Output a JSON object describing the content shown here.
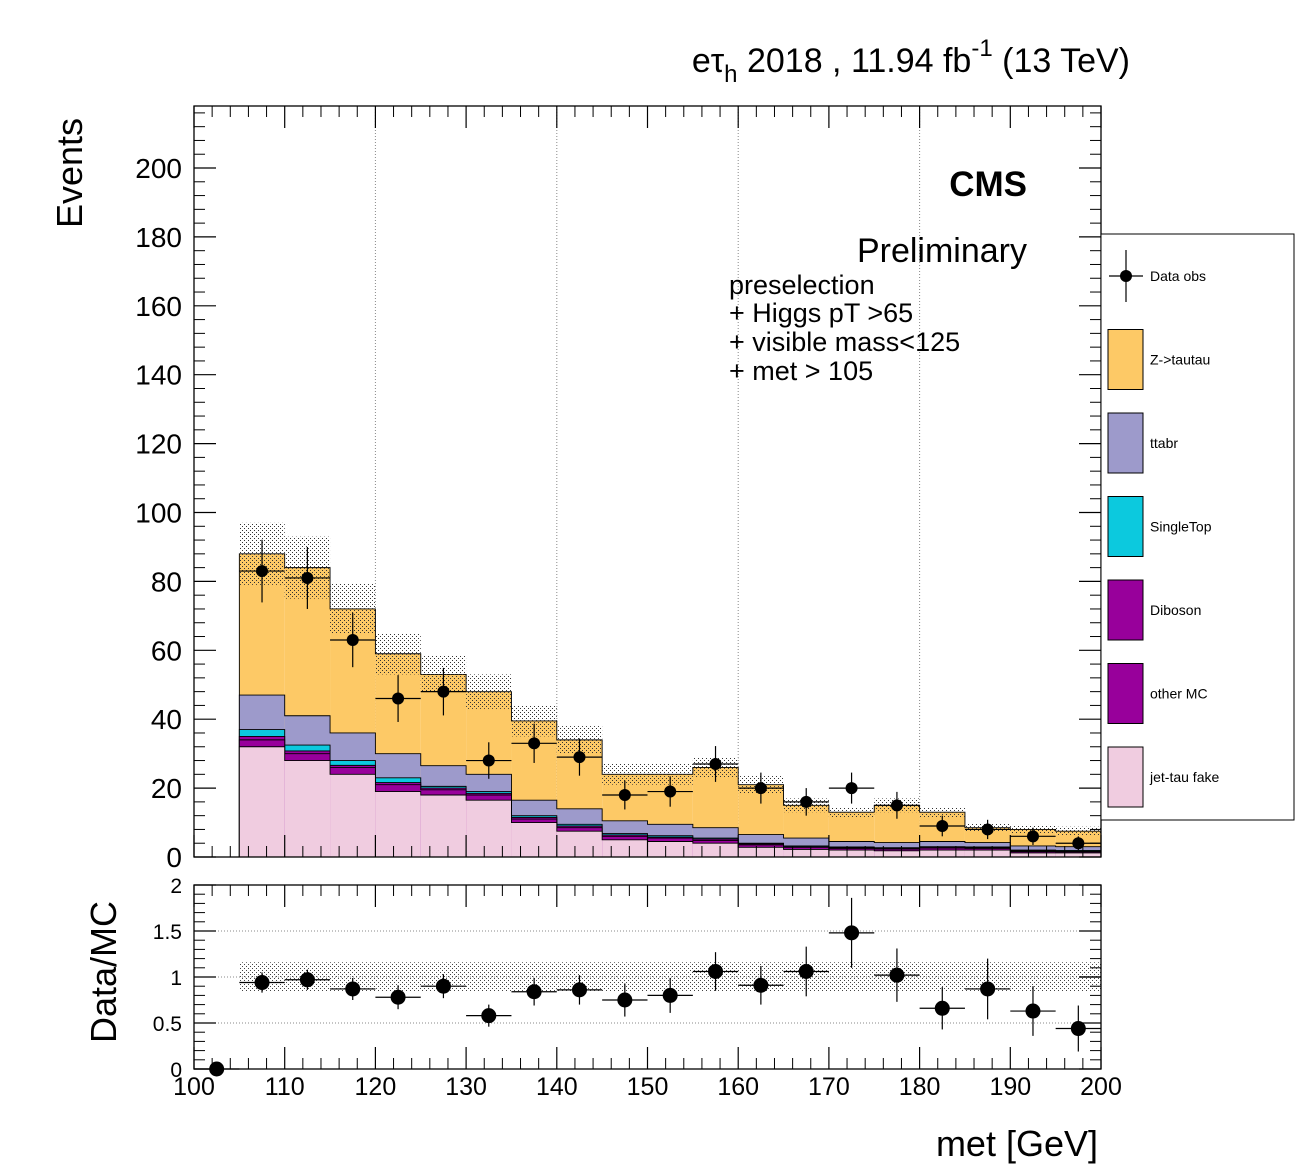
{
  "header": {
    "channel_main": "eτ",
    "channel_sub": "h",
    "lumi_text": " 2018 , 11.94 fb",
    "lumi_exp": "-1",
    "energy": " (13 TeV)"
  },
  "labels": {
    "cms": "CMS",
    "preliminary": "Preliminary",
    "selection": [
      "preselection",
      "+ Higgs pT >65",
      "+ visible mass<125",
      "+ met > 105"
    ]
  },
  "legend": [
    {
      "name": "Data obs",
      "kind": "marker",
      "color": "#000000"
    },
    {
      "name": "Z->tautau",
      "kind": "fill",
      "color": "#FDC966"
    },
    {
      "name": "ttabr",
      "kind": "fill",
      "color": "#9D9ACB"
    },
    {
      "name": "SingleTop",
      "kind": "fill",
      "color": "#0CC9DE"
    },
    {
      "name": "Diboson",
      "kind": "fill",
      "color": "#98009B"
    },
    {
      "name": "other MC",
      "kind": "fill",
      "color": "#98009B"
    },
    {
      "name": "jet-tau fake",
      "kind": "fill",
      "color": "#F0CCE0"
    }
  ],
  "chart_data": [
    {
      "type": "bar",
      "stacked": true,
      "ylabel": "Events",
      "xlim": [
        100,
        200
      ],
      "ylim": [
        0,
        218
      ],
      "yticks": [
        0,
        20,
        40,
        60,
        80,
        100,
        120,
        140,
        160,
        180,
        200
      ],
      "grid_x": true,
      "bin_edges": [
        105,
        110,
        115,
        120,
        125,
        130,
        135,
        140,
        145,
        150,
        155,
        160,
        165,
        170,
        175,
        180,
        185,
        190,
        195,
        200
      ],
      "stack_cumulative": [
        {
          "name": "jet-tau fake",
          "color": "#F0CCE0",
          "values": [
            32,
            28,
            24,
            19,
            18,
            16.5,
            10,
            7.5,
            5,
            4.5,
            4,
            2.8,
            2.2,
            2,
            1.8,
            2,
            2,
            1.2,
            1.2
          ]
        },
        {
          "name": "other MC",
          "color": "#98009B",
          "values": [
            34,
            30,
            26,
            21,
            19.5,
            18,
            11,
            8.5,
            6,
            5.5,
            4.8,
            3.5,
            2.8,
            2.5,
            2.3,
            2.6,
            2.5,
            1.6,
            1.5
          ]
        },
        {
          "name": "Diboson",
          "color": "#98009B",
          "values": [
            35,
            30.8,
            26.6,
            21.6,
            20,
            18.5,
            11.5,
            9,
            6.4,
            5.8,
            5.2,
            3.8,
            3,
            2.7,
            2.5,
            2.8,
            2.7,
            1.8,
            1.7
          ]
        },
        {
          "name": "SingleTop",
          "color": "#0CC9DE",
          "values": [
            37,
            32.5,
            28,
            23,
            20.5,
            19,
            12,
            9.5,
            6.8,
            6.2,
            5.5,
            4,
            3.2,
            2.9,
            2.7,
            3,
            2.9,
            2,
            1.9
          ]
        },
        {
          "name": "ttabr",
          "color": "#9D9ACB",
          "values": [
            47,
            41,
            36,
            30,
            26.5,
            24,
            16.5,
            14,
            10.5,
            9.5,
            8.5,
            6.5,
            5.5,
            4.5,
            4.2,
            4.5,
            4.2,
            3.2,
            3
          ]
        },
        {
          "name": "Z->tautau",
          "color": "#FDC966",
          "values": [
            88,
            84,
            72,
            59,
            53,
            48,
            39.5,
            34,
            24,
            24,
            26,
            21,
            15,
            13,
            15,
            13,
            8.5,
            8,
            7.5
          ]
        }
      ],
      "uncertainty_band": {
        "low": [
          79,
          75,
          65,
          53,
          48,
          43,
          35,
          30,
          21,
          21,
          23,
          18.5,
          13,
          11.5,
          13,
          11.5,
          7.3,
          6.8,
          6.3
        ],
        "high": [
          97,
          93,
          79.5,
          65,
          58.5,
          53,
          44,
          38,
          27,
          27,
          29,
          23.5,
          17,
          14.5,
          17,
          14.5,
          9.7,
          9.3,
          8.8
        ]
      },
      "data": {
        "x": [
          107.5,
          112.5,
          117.5,
          122.5,
          127.5,
          132.5,
          137.5,
          142.5,
          147.5,
          152.5,
          157.5,
          162.5,
          167.5,
          172.5,
          177.5,
          182.5,
          187.5,
          192.5,
          197.5
        ],
        "y": [
          83,
          81,
          63,
          46,
          48,
          28,
          33,
          29,
          18,
          19,
          27,
          20,
          16,
          20,
          15,
          9,
          8,
          6,
          4
        ],
        "err": [
          9.1,
          9,
          7.9,
          6.8,
          6.9,
          5.3,
          5.7,
          5.4,
          4.2,
          4.4,
          5.2,
          4.5,
          4,
          4.5,
          3.9,
          3,
          2.8,
          2.5,
          2
        ]
      }
    },
    {
      "type": "scatter",
      "ylabel": "Data/MC",
      "xlabel": "met [GeV]",
      "xlim": [
        100,
        200
      ],
      "ylim": [
        0,
        2
      ],
      "xticks": [
        100,
        110,
        120,
        130,
        140,
        150,
        160,
        170,
        180,
        190,
        200
      ],
      "yticks": [
        0,
        0.5,
        1,
        1.5,
        2
      ],
      "ytick_labels": [
        "0",
        "0.5",
        "1",
        "1.5",
        "2"
      ],
      "grid_y": true,
      "band": {
        "xmin": 105,
        "xmax": 200,
        "low": 0.84,
        "high": 1.16
      },
      "x": [
        102.5,
        107.5,
        112.5,
        117.5,
        122.5,
        127.5,
        132.5,
        137.5,
        142.5,
        147.5,
        152.5,
        157.5,
        162.5,
        167.5,
        172.5,
        177.5,
        182.5,
        187.5,
        192.5,
        197.5
      ],
      "y": [
        0,
        0.94,
        0.97,
        0.87,
        0.78,
        0.9,
        0.58,
        0.84,
        0.86,
        0.75,
        0.8,
        1.06,
        0.91,
        1.06,
        1.48,
        1.02,
        0.66,
        0.87,
        0.63,
        0.44
      ],
      "err": [
        0,
        0.11,
        0.11,
        0.12,
        0.13,
        0.13,
        0.12,
        0.15,
        0.16,
        0.18,
        0.19,
        0.21,
        0.21,
        0.27,
        0.38,
        0.29,
        0.23,
        0.33,
        0.27,
        0.25
      ]
    }
  ]
}
